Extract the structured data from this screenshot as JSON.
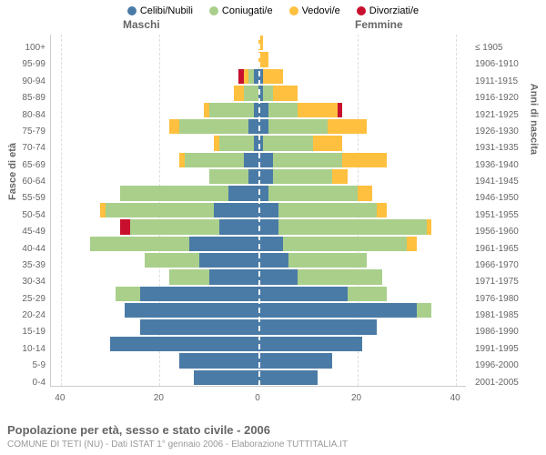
{
  "chart": {
    "type": "population-pyramid",
    "title": "Popolazione per età, sesso e stato civile - 2006",
    "subtitle": "COMUNE DI TETI (NU) - Dati ISTAT 1° gennaio 2006 - Elaborazione TUTTITALIA.IT",
    "header_male": "Maschi",
    "header_female": "Femmine",
    "axis_left_label": "Fasce di età",
    "axis_right_label": "Anni di nascita",
    "background_color": "#ffffff",
    "grid_color": "#dddddd",
    "text_color": "#666666",
    "title_fontsize": 13,
    "label_fontsize": 10,
    "xlim": 42,
    "x_ticks": [
      40,
      20,
      0,
      20,
      40
    ],
    "legend": [
      {
        "label": "Celibi/Nubili",
        "color": "#4a7ba6"
      },
      {
        "label": "Coniugati/e",
        "color": "#a9cf8b"
      },
      {
        "label": "Vedovi/e",
        "color": "#ffc03f"
      },
      {
        "label": "Divorziati/e",
        "color": "#c8102e"
      }
    ],
    "colors": {
      "single": "#4a7ba6",
      "married": "#a9cf8b",
      "widowed": "#ffc03f",
      "divorced": "#c8102e"
    },
    "age_groups": [
      {
        "age": "100+",
        "birth": "≤ 1905",
        "m": {
          "s": 0,
          "m": 0,
          "w": 0,
          "d": 0
        },
        "f": {
          "s": 0,
          "m": 0,
          "w": 1,
          "d": 0
        }
      },
      {
        "age": "95-99",
        "birth": "1906-1910",
        "m": {
          "s": 0,
          "m": 0,
          "w": 0,
          "d": 0
        },
        "f": {
          "s": 0,
          "m": 0,
          "w": 2,
          "d": 0
        }
      },
      {
        "age": "90-94",
        "birth": "1911-1915",
        "m": {
          "s": 1,
          "m": 1,
          "w": 1,
          "d": 1
        },
        "f": {
          "s": 1,
          "m": 0,
          "w": 4,
          "d": 0
        }
      },
      {
        "age": "85-89",
        "birth": "1916-1920",
        "m": {
          "s": 0,
          "m": 3,
          "w": 2,
          "d": 0
        },
        "f": {
          "s": 1,
          "m": 2,
          "w": 5,
          "d": 0
        }
      },
      {
        "age": "80-84",
        "birth": "1921-1925",
        "m": {
          "s": 1,
          "m": 9,
          "w": 1,
          "d": 0
        },
        "f": {
          "s": 2,
          "m": 6,
          "w": 8,
          "d": 1
        }
      },
      {
        "age": "75-79",
        "birth": "1926-1930",
        "m": {
          "s": 2,
          "m": 14,
          "w": 2,
          "d": 0
        },
        "f": {
          "s": 2,
          "m": 12,
          "w": 8,
          "d": 0
        }
      },
      {
        "age": "70-74",
        "birth": "1931-1935",
        "m": {
          "s": 1,
          "m": 7,
          "w": 1,
          "d": 0
        },
        "f": {
          "s": 1,
          "m": 10,
          "w": 6,
          "d": 0
        }
      },
      {
        "age": "65-69",
        "birth": "1936-1940",
        "m": {
          "s": 3,
          "m": 12,
          "w": 1,
          "d": 0
        },
        "f": {
          "s": 3,
          "m": 14,
          "w": 9,
          "d": 0
        }
      },
      {
        "age": "60-64",
        "birth": "1941-1945",
        "m": {
          "s": 2,
          "m": 8,
          "w": 0,
          "d": 0
        },
        "f": {
          "s": 3,
          "m": 12,
          "w": 3,
          "d": 0
        }
      },
      {
        "age": "55-59",
        "birth": "1946-1950",
        "m": {
          "s": 6,
          "m": 22,
          "w": 0,
          "d": 0
        },
        "f": {
          "s": 2,
          "m": 18,
          "w": 3,
          "d": 0
        }
      },
      {
        "age": "50-54",
        "birth": "1951-1955",
        "m": {
          "s": 9,
          "m": 22,
          "w": 1,
          "d": 0
        },
        "f": {
          "s": 4,
          "m": 20,
          "w": 2,
          "d": 0
        }
      },
      {
        "age": "45-49",
        "birth": "1956-1960",
        "m": {
          "s": 8,
          "m": 18,
          "w": 0,
          "d": 2
        },
        "f": {
          "s": 4,
          "m": 30,
          "w": 1,
          "d": 0
        }
      },
      {
        "age": "40-44",
        "birth": "1961-1965",
        "m": {
          "s": 14,
          "m": 20,
          "w": 0,
          "d": 0
        },
        "f": {
          "s": 5,
          "m": 25,
          "w": 2,
          "d": 0
        }
      },
      {
        "age": "35-39",
        "birth": "1966-1970",
        "m": {
          "s": 12,
          "m": 11,
          "w": 0,
          "d": 0
        },
        "f": {
          "s": 6,
          "m": 16,
          "w": 0,
          "d": 0
        }
      },
      {
        "age": "30-34",
        "birth": "1971-1975",
        "m": {
          "s": 10,
          "m": 8,
          "w": 0,
          "d": 0
        },
        "f": {
          "s": 8,
          "m": 17,
          "w": 0,
          "d": 0
        }
      },
      {
        "age": "25-29",
        "birth": "1976-1980",
        "m": {
          "s": 24,
          "m": 5,
          "w": 0,
          "d": 0
        },
        "f": {
          "s": 18,
          "m": 8,
          "w": 0,
          "d": 0
        }
      },
      {
        "age": "20-24",
        "birth": "1981-1985",
        "m": {
          "s": 27,
          "m": 0,
          "w": 0,
          "d": 0
        },
        "f": {
          "s": 32,
          "m": 3,
          "w": 0,
          "d": 0
        }
      },
      {
        "age": "15-19",
        "birth": "1986-1990",
        "m": {
          "s": 24,
          "m": 0,
          "w": 0,
          "d": 0
        },
        "f": {
          "s": 24,
          "m": 0,
          "w": 0,
          "d": 0
        }
      },
      {
        "age": "10-14",
        "birth": "1991-1995",
        "m": {
          "s": 30,
          "m": 0,
          "w": 0,
          "d": 0
        },
        "f": {
          "s": 21,
          "m": 0,
          "w": 0,
          "d": 0
        }
      },
      {
        "age": "5-9",
        "birth": "1996-2000",
        "m": {
          "s": 16,
          "m": 0,
          "w": 0,
          "d": 0
        },
        "f": {
          "s": 15,
          "m": 0,
          "w": 0,
          "d": 0
        }
      },
      {
        "age": "0-4",
        "birth": "2001-2005",
        "m": {
          "s": 13,
          "m": 0,
          "w": 0,
          "d": 0
        },
        "f": {
          "s": 12,
          "m": 0,
          "w": 0,
          "d": 0
        }
      }
    ]
  }
}
